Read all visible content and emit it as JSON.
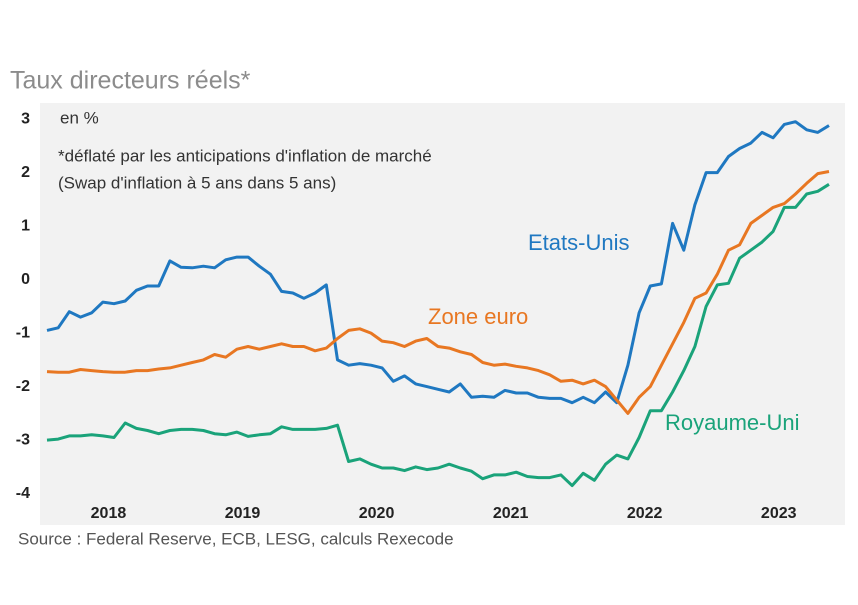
{
  "chart_data": {
    "type": "line",
    "title": "Taux directeurs réels*",
    "y_unit": "en %",
    "notes": [
      "*déflaté par les anticipations d'inflation de marché",
      "(Swap d'inflation à 5 ans dans 5 ans)"
    ],
    "source": "Source : Federal Reserve, ECB, LESG, calculs Rexecode",
    "categories": [
      null,
      null,
      null,
      null,
      null,
      null,
      "2018",
      null,
      null,
      null,
      null,
      null,
      null,
      null,
      null,
      null,
      null,
      null,
      "2019",
      null,
      null,
      null,
      null,
      null,
      null,
      null,
      null,
      null,
      null,
      null,
      "2020",
      null,
      null,
      null,
      null,
      null,
      null,
      null,
      null,
      null,
      null,
      null,
      "2021",
      null,
      null,
      null,
      null,
      null,
      null,
      null,
      null,
      null,
      null,
      null,
      "2022",
      null,
      null,
      null,
      null,
      null,
      null,
      null,
      null,
      null,
      null,
      null,
      "2023",
      null,
      null,
      null,
      null
    ],
    "ylim": [
      -4.1,
      3.3
    ],
    "yticks": [
      3,
      2,
      1,
      0,
      -1,
      -2,
      -3,
      -4
    ],
    "grid": false,
    "series": [
      {
        "name": "Etats-Unis",
        "color": "#1f78c1",
        "values": [
          -0.95,
          -0.9,
          -0.6,
          -0.7,
          -0.62,
          -0.42,
          -0.45,
          -0.4,
          -0.2,
          -0.12,
          -0.12,
          0.35,
          0.23,
          0.22,
          0.25,
          0.22,
          0.37,
          0.42,
          0.42,
          0.25,
          0.1,
          -0.22,
          -0.25,
          -0.35,
          -0.25,
          -0.1,
          -1.5,
          -1.6,
          -1.57,
          -1.6,
          -1.65,
          -1.9,
          -1.8,
          -1.95,
          -2.0,
          -2.05,
          -2.1,
          -1.95,
          -2.2,
          -2.18,
          -2.2,
          -2.07,
          -2.12,
          -2.12,
          -2.2,
          -2.22,
          -2.22,
          -2.3,
          -2.2,
          -2.3,
          -2.1,
          -2.3,
          -1.6,
          -0.62,
          -0.12,
          -0.08,
          1.05,
          0.55,
          1.4,
          2.0,
          2.0,
          2.3,
          2.45,
          2.55,
          2.75,
          2.65,
          2.9,
          2.95,
          2.8,
          2.75,
          2.88
        ]
      },
      {
        "name": "Zone euro",
        "color": "#e87722",
        "values": [
          -1.72,
          -1.73,
          -1.73,
          -1.68,
          -1.7,
          -1.72,
          -1.73,
          -1.73,
          -1.7,
          -1.7,
          -1.67,
          -1.65,
          -1.6,
          -1.55,
          -1.5,
          -1.4,
          -1.45,
          -1.3,
          -1.25,
          -1.3,
          -1.25,
          -1.2,
          -1.25,
          -1.25,
          -1.33,
          -1.28,
          -1.1,
          -0.95,
          -0.92,
          -1.0,
          -1.15,
          -1.18,
          -1.25,
          -1.15,
          -1.1,
          -1.25,
          -1.28,
          -1.35,
          -1.4,
          -1.55,
          -1.6,
          -1.58,
          -1.62,
          -1.65,
          -1.7,
          -1.78,
          -1.9,
          -1.88,
          -1.95,
          -1.88,
          -2.0,
          -2.25,
          -2.5,
          -2.2,
          -2.0,
          -1.6,
          -1.2,
          -0.8,
          -0.35,
          -0.25,
          0.1,
          0.55,
          0.65,
          1.05,
          1.2,
          1.35,
          1.42,
          1.6,
          1.8,
          1.98,
          2.02
        ]
      },
      {
        "name": "Royaume-Uni",
        "color": "#1aa37a",
        "values": [
          -3.0,
          -2.98,
          -2.92,
          -2.92,
          -2.9,
          -2.92,
          -2.95,
          -2.68,
          -2.78,
          -2.82,
          -2.88,
          -2.82,
          -2.8,
          -2.8,
          -2.82,
          -2.88,
          -2.9,
          -2.85,
          -2.93,
          -2.9,
          -2.88,
          -2.75,
          -2.8,
          -2.8,
          -2.8,
          -2.78,
          -2.72,
          -3.4,
          -3.35,
          -3.45,
          -3.52,
          -3.52,
          -3.57,
          -3.5,
          -3.55,
          -3.52,
          -3.45,
          -3.52,
          -3.58,
          -3.72,
          -3.65,
          -3.65,
          -3.6,
          -3.68,
          -3.7,
          -3.7,
          -3.65,
          -3.85,
          -3.62,
          -3.75,
          -3.45,
          -3.28,
          -3.35,
          -2.95,
          -2.45,
          -2.45,
          -2.1,
          -1.7,
          -1.25,
          -0.5,
          -0.1,
          -0.07,
          0.4,
          0.55,
          0.7,
          0.9,
          1.35,
          1.35,
          1.6,
          1.65,
          1.78
        ]
      }
    ]
  }
}
